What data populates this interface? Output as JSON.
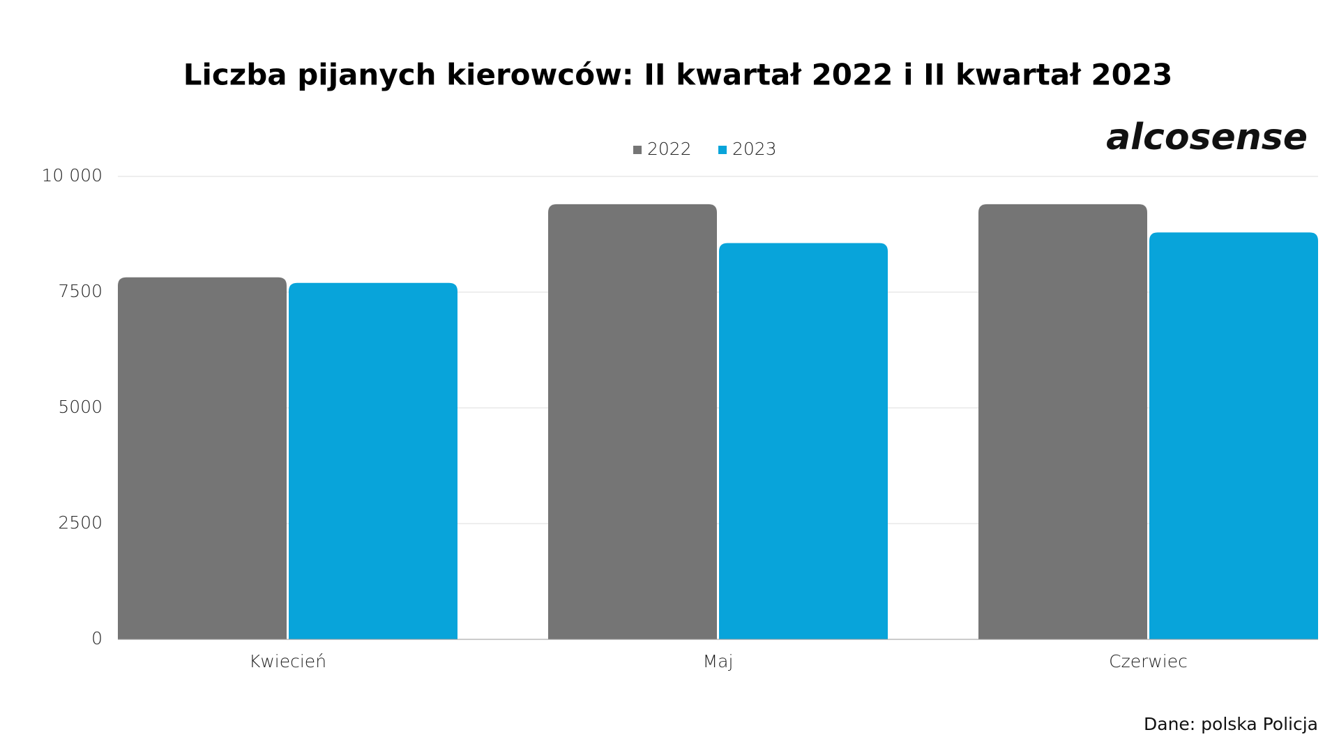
{
  "chart_data": {
    "type": "bar",
    "title": "Liczba pijanych kierowców: II kwartał 2022 i II kwartał 2023",
    "logo": "alcosense",
    "source": "Dane: polska Policja",
    "categories": [
      "Kwiecień",
      "Maj",
      "Czerwiec"
    ],
    "series": [
      {
        "name": "2022",
        "color": "#757575",
        "values": [
          7820,
          9400,
          9400
        ]
      },
      {
        "name": "2023",
        "color": "#08a4da",
        "values": [
          7700,
          8560,
          8790
        ]
      }
    ],
    "ylim": [
      0,
      10000
    ],
    "yticks": [
      0,
      2500,
      5000,
      7500,
      {
        "value": 10000,
        "label": "10 000"
      }
    ],
    "grid": true
  }
}
